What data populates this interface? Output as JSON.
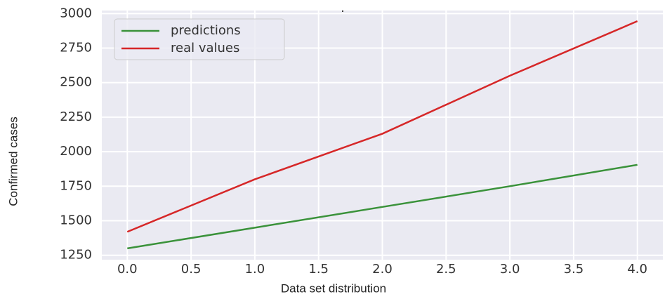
{
  "chart_data": {
    "type": "line",
    "title": ".",
    "x_label": "Data set distribution",
    "y_label": "Confirmed cases",
    "x": [
      0,
      1,
      2,
      3,
      4
    ],
    "series": [
      {
        "name": "predictions",
        "color": "#3a923a",
        "values": [
          1300,
          1450,
          1600,
          1750,
          1905
        ]
      },
      {
        "name": "real values",
        "color": "#d62728",
        "values": [
          1420,
          1800,
          2130,
          2550,
          2945
        ]
      }
    ],
    "xlim": [
      -0.2,
      4.2
    ],
    "xticks": [
      {
        "value": 0,
        "label": "0.0"
      },
      {
        "value": 0.5,
        "label": "0.5"
      },
      {
        "value": 1,
        "label": "1.0"
      },
      {
        "value": 1.5,
        "label": "1.5"
      },
      {
        "value": 2,
        "label": "2.0"
      },
      {
        "value": 2.5,
        "label": "2.5"
      },
      {
        "value": 3,
        "label": "3.0"
      },
      {
        "value": 3.5,
        "label": "3.5"
      },
      {
        "value": 4,
        "label": "4.0"
      }
    ],
    "ylim": [
      1218,
      3022
    ],
    "yticks": [
      1250,
      1500,
      1750,
      2000,
      2250,
      2500,
      2750,
      3000
    ],
    "grid": true,
    "legend": "upper left"
  }
}
